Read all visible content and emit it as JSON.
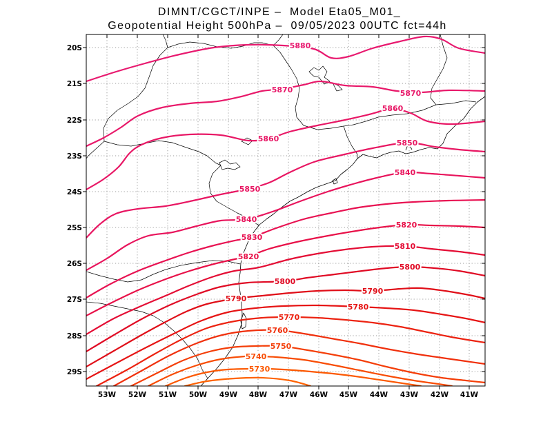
{
  "title": {
    "line1": "DIMNT/CGCT/INPE –  Model Eta05_M01_",
    "line2": "Geopotential Height 500hPa –  09/05/2023 00UTC fct=44h"
  },
  "axes": {
    "lat_labels": [
      "20S",
      "21S",
      "22S",
      "23S",
      "24S",
      "25S",
      "26S",
      "27S",
      "28S",
      "29S"
    ],
    "lon_labels": [
      "53W",
      "52W",
      "51W",
      "50W",
      "49W",
      "48W",
      "47W",
      "46W",
      "45W",
      "44W",
      "43W",
      "42W",
      "41W"
    ]
  },
  "contours": {
    "labels": [
      "5880",
      "5870",
      "5870",
      "5860",
      "5860",
      "5850",
      "5840",
      "5850",
      "5840",
      "5820",
      "5830",
      "5810",
      "5820",
      "5800",
      "5800",
      "5790",
      "5790",
      "5780",
      "5770",
      "5760",
      "5750",
      "5740",
      "5730"
    ],
    "colors": {
      "5880": "#e8196f",
      "5870": "#e8196a",
      "5860": "#e81866",
      "5850": "#e81662",
      "5840": "#e8145c",
      "5830": "#e81252",
      "5820": "#e81048",
      "5810": "#e40c34",
      "5800": "#e00a24",
      "5790": "#e00e18",
      "5780": "#e61414",
      "5770": "#ec2210",
      "5760": "#f0300c",
      "5750": "#f43e08",
      "5740": "#f84c04",
      "5730": "#fc5800",
      "5720": "#ff6200"
    },
    "map_line_color": "#000000"
  }
}
